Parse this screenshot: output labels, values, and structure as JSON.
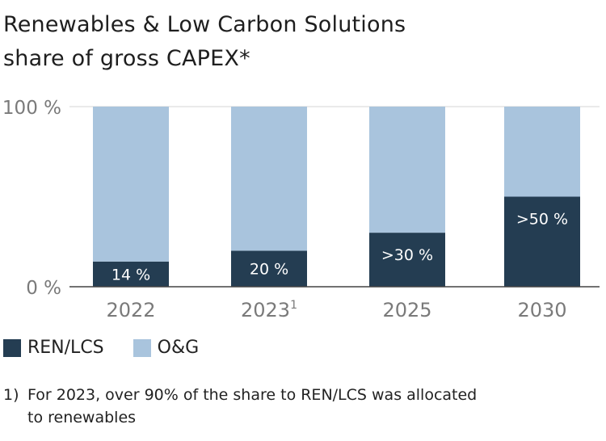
{
  "title_line1": "Renewables & Low Carbon Solutions",
  "title_line2": "share of gross CAPEX*",
  "chart_data": {
    "type": "bar",
    "stacked": true,
    "categories": [
      "2022",
      "2023",
      "2025",
      "2030"
    ],
    "category_superscripts": [
      "",
      "1",
      "",
      ""
    ],
    "series": [
      {
        "name": "REN/LCS",
        "values": [
          14,
          20,
          30,
          50
        ],
        "labels": [
          "14 %",
          "20 %",
          ">30 %",
          ">50 %"
        ],
        "color": "#243d52"
      },
      {
        "name": "O&G",
        "values": [
          86,
          80,
          70,
          50
        ],
        "color": "#a9c4dd"
      }
    ],
    "yticks": [
      "0 %",
      "100 %"
    ],
    "ylim": [
      0,
      100
    ],
    "grid": true,
    "legend_position": "bottom-left"
  },
  "legend": [
    {
      "label": "REN/LCS",
      "color": "#243d52"
    },
    {
      "label": "O&G",
      "color": "#a9c4dd"
    }
  ],
  "footnote": {
    "number": "1)",
    "line1": "For 2023, over 90% of the share to REN/LCS was allocated",
    "line2": "to renewables"
  }
}
